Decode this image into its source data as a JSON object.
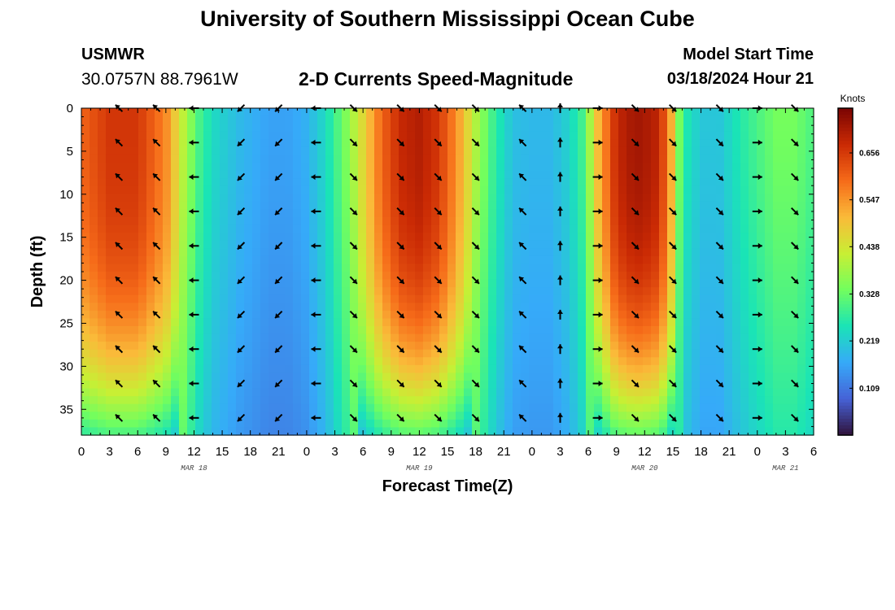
{
  "header": {
    "title": "University of Southern Mississippi Ocean Cube",
    "station": "USMWR",
    "coords": "30.0757N  88.7961W",
    "subtitle": "2-D Currents Speed-Magnitude",
    "model_start_label": "Model Start Time",
    "model_start_value": "03/18/2024 Hour 21"
  },
  "footer": {
    "title": "University of Southern Mississippi Ocean Cube"
  },
  "chart_data": {
    "type": "heatmap",
    "title": "2-D Currents Speed-Magnitude",
    "xlabel": "Forecast Time(Z)",
    "ylabel": "Depth (ft)",
    "x_range_hours": [
      0,
      78
    ],
    "x_ticks": [
      {
        "h": 0,
        "label": "0"
      },
      {
        "h": 3,
        "label": "3"
      },
      {
        "h": 6,
        "label": "6"
      },
      {
        "h": 9,
        "label": "9"
      },
      {
        "h": 12,
        "label": "12"
      },
      {
        "h": 15,
        "label": "15"
      },
      {
        "h": 18,
        "label": "18"
      },
      {
        "h": 21,
        "label": "21"
      },
      {
        "h": 24,
        "label": "0"
      },
      {
        "h": 27,
        "label": "3"
      },
      {
        "h": 30,
        "label": "6"
      },
      {
        "h": 33,
        "label": "9"
      },
      {
        "h": 36,
        "label": "12"
      },
      {
        "h": 39,
        "label": "15"
      },
      {
        "h": 42,
        "label": "18"
      },
      {
        "h": 45,
        "label": "21"
      },
      {
        "h": 48,
        "label": "0"
      },
      {
        "h": 51,
        "label": "3"
      },
      {
        "h": 54,
        "label": "6"
      },
      {
        "h": 57,
        "label": "9"
      },
      {
        "h": 60,
        "label": "12"
      },
      {
        "h": 63,
        "label": "15"
      },
      {
        "h": 66,
        "label": "18"
      },
      {
        "h": 69,
        "label": "21"
      },
      {
        "h": 72,
        "label": "0"
      },
      {
        "h": 75,
        "label": "3"
      },
      {
        "h": 78,
        "label": "6"
      }
    ],
    "date_labels": [
      {
        "h": 12,
        "label": "MAR 18"
      },
      {
        "h": 36,
        "label": "MAR 19"
      },
      {
        "h": 60,
        "label": "MAR 20"
      },
      {
        "h": 75,
        "label": "MAR 21"
      }
    ],
    "y_range_ft": [
      0,
      38
    ],
    "y_ticks": [
      0,
      5,
      10,
      15,
      20,
      25,
      30,
      35
    ],
    "colorbar": {
      "unit": "Knots",
      "range": [
        0,
        0.76
      ],
      "ticks": [
        0.109,
        0.219,
        0.328,
        0.438,
        0.547,
        0.656
      ],
      "colors": [
        "#30123b",
        "#4662d7",
        "#36aaf9",
        "#1ae4b6",
        "#72fe5e",
        "#c8ef34",
        "#faba39",
        "#f66b19",
        "#ca2a04",
        "#7a0403"
      ]
    },
    "speed_profile": [
      {
        "h": 0,
        "v": 0.6
      },
      {
        "h": 3,
        "v": 0.66
      },
      {
        "h": 6,
        "v": 0.66
      },
      {
        "h": 9,
        "v": 0.56
      },
      {
        "h": 11,
        "v": 0.4
      },
      {
        "h": 12.5,
        "v": 0.3
      },
      {
        "h": 14,
        "v": 0.24
      },
      {
        "h": 17,
        "v": 0.19
      },
      {
        "h": 20,
        "v": 0.16
      },
      {
        "h": 22,
        "v": 0.16
      },
      {
        "h": 24,
        "v": 0.18
      },
      {
        "h": 26,
        "v": 0.24
      },
      {
        "h": 28,
        "v": 0.34
      },
      {
        "h": 30,
        "v": 0.46
      },
      {
        "h": 32,
        "v": 0.6
      },
      {
        "h": 34,
        "v": 0.68
      },
      {
        "h": 36,
        "v": 0.7
      },
      {
        "h": 38,
        "v": 0.66
      },
      {
        "h": 40,
        "v": 0.55
      },
      {
        "h": 42,
        "v": 0.4
      },
      {
        "h": 44,
        "v": 0.28
      },
      {
        "h": 46,
        "v": 0.2
      },
      {
        "h": 48,
        "v": 0.19
      },
      {
        "h": 50,
        "v": 0.19
      },
      {
        "h": 52,
        "v": 0.23
      },
      {
        "h": 53.5,
        "v": 0.3
      },
      {
        "h": 55,
        "v": 0.5
      },
      {
        "h": 57,
        "v": 0.68
      },
      {
        "h": 59,
        "v": 0.72
      },
      {
        "h": 61,
        "v": 0.7
      },
      {
        "h": 62.5,
        "v": 0.6
      },
      {
        "h": 63.5,
        "v": 0.36
      },
      {
        "h": 64.5,
        "v": 0.26
      },
      {
        "h": 66,
        "v": 0.21
      },
      {
        "h": 68,
        "v": 0.21
      },
      {
        "h": 70,
        "v": 0.26
      },
      {
        "h": 72,
        "v": 0.3
      },
      {
        "h": 74,
        "v": 0.34
      },
      {
        "h": 76,
        "v": 0.34
      },
      {
        "h": 78,
        "v": 0.3
      }
    ],
    "vector_times_h": [
      4,
      8,
      12,
      17,
      21,
      25,
      29,
      34,
      38,
      42,
      47,
      51,
      55,
      59,
      63,
      68,
      72,
      76
    ],
    "vector_depths_ft": [
      0,
      4,
      8,
      12,
      16,
      20,
      24,
      28,
      32,
      36
    ],
    "vector_directions_deg": [
      315,
      315,
      270,
      225,
      225,
      270,
      135,
      135,
      135,
      135,
      315,
      0,
      90,
      135,
      135,
      135,
      90,
      135
    ]
  }
}
